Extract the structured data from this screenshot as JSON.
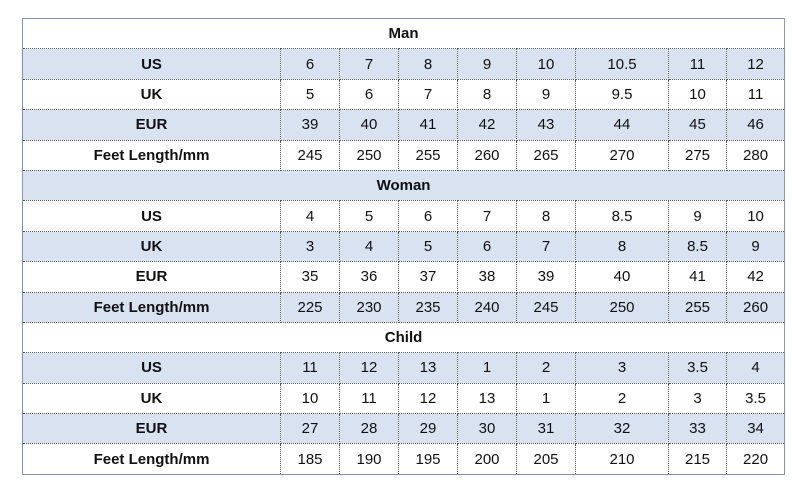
{
  "sections": [
    {
      "title": "Man",
      "rows": [
        {
          "label": "US",
          "values": [
            "6",
            "7",
            "8",
            "9",
            "10",
            "10.5",
            "11",
            "12"
          ]
        },
        {
          "label": "UK",
          "values": [
            "5",
            "6",
            "7",
            "8",
            "9",
            "9.5",
            "10",
            "11"
          ]
        },
        {
          "label": "EUR",
          "values": [
            "39",
            "40",
            "41",
            "42",
            "43",
            "44",
            "45",
            "46"
          ]
        },
        {
          "label": "Feet Length/mm",
          "values": [
            "245",
            "250",
            "255",
            "260",
            "265",
            "270",
            "275",
            "280"
          ]
        }
      ]
    },
    {
      "title": "Woman",
      "rows": [
        {
          "label": "US",
          "values": [
            "4",
            "5",
            "6",
            "7",
            "8",
            "8.5",
            "9",
            "10"
          ]
        },
        {
          "label": "UK",
          "values": [
            "3",
            "4",
            "5",
            "6",
            "7",
            "8",
            "8.5",
            "9"
          ]
        },
        {
          "label": "EUR",
          "values": [
            "35",
            "36",
            "37",
            "38",
            "39",
            "40",
            "41",
            "42"
          ]
        },
        {
          "label": "Feet Length/mm",
          "values": [
            "225",
            "230",
            "235",
            "240",
            "245",
            "250",
            "255",
            "260"
          ]
        }
      ]
    },
    {
      "title": "Child",
      "rows": [
        {
          "label": "US",
          "values": [
            "11",
            "12",
            "13",
            "1",
            "2",
            "3",
            "3.5",
            "4"
          ]
        },
        {
          "label": "UK",
          "values": [
            "10",
            "11",
            "12",
            "13",
            "1",
            "2",
            "3",
            "3.5"
          ]
        },
        {
          "label": "EUR",
          "values": [
            "27",
            "28",
            "29",
            "30",
            "31",
            "32",
            "33",
            "34"
          ]
        },
        {
          "label": "Feet Length/mm",
          "values": [
            "185",
            "190",
            "195",
            "200",
            "205",
            "210",
            "215",
            "220"
          ]
        }
      ]
    }
  ],
  "colors": {
    "shaded_row": "#d9e2f1",
    "plain_row": "#ffffff",
    "border": "#555555"
  }
}
